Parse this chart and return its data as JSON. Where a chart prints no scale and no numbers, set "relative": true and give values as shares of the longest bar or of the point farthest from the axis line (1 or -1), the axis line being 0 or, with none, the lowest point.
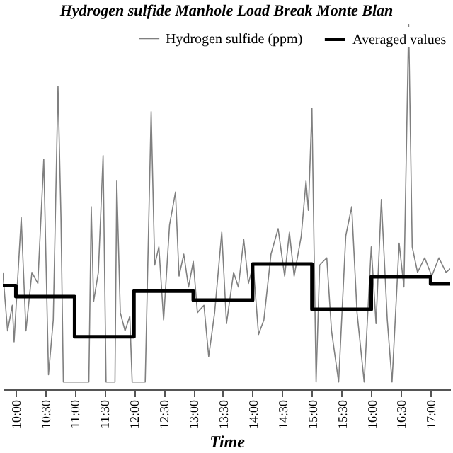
{
  "chart_data": {
    "type": "line",
    "title": "Hydrogen sulfide Manhole Load Break Monte Blan",
    "xlabel": "Time",
    "relative": true,
    "legend": "top right",
    "grid": false,
    "xlim": [
      9.79,
      17.33
    ],
    "xticks": [
      {
        "value": 10,
        "label": "10:00"
      },
      {
        "value": 10.5,
        "label": "10:30"
      },
      {
        "value": 11,
        "label": "11:00"
      },
      {
        "value": 11.5,
        "label": "11:30"
      },
      {
        "value": 12,
        "label": "12:00"
      },
      {
        "value": 12.5,
        "label": "12:30"
      },
      {
        "value": 13,
        "label": "13:00"
      },
      {
        "value": 13.5,
        "label": "13:30"
      },
      {
        "value": 14,
        "label": "14:00"
      },
      {
        "value": 14.5,
        "label": "14:30"
      },
      {
        "value": 15,
        "label": "15:00"
      },
      {
        "value": 15.5,
        "label": "15:30"
      },
      {
        "value": 16,
        "label": "16:00"
      },
      {
        "value": 16.5,
        "label": "16:30"
      },
      {
        "value": 17,
        "label": "17:00"
      }
    ],
    "series": [
      {
        "name": "Hydrogen sulfide (ppm)",
        "type": "line",
        "color": "#808080",
        "x": [
          9.79,
          9.87,
          9.95,
          9.98,
          10.1,
          10.18,
          10.28,
          10.38,
          10.48,
          10.56,
          10.64,
          10.72,
          10.77,
          10.81,
          10.97,
          11.24,
          11.28,
          11.32,
          11.4,
          11.48,
          11.53,
          11.68,
          11.71,
          11.77,
          11.85,
          11.93,
          11.97,
          12.19,
          12.29,
          12.35,
          12.42,
          12.5,
          12.6,
          12.7,
          12.76,
          12.84,
          12.92,
          13.0,
          13.07,
          13.18,
          13.26,
          13.36,
          13.48,
          13.56,
          13.68,
          13.76,
          13.85,
          13.93,
          14.01,
          14.1,
          14.19,
          14.31,
          14.43,
          14.54,
          14.62,
          14.7,
          14.82,
          14.9,
          14.94,
          15.0,
          15.07,
          15.13,
          15.25,
          15.33,
          15.45,
          15.57,
          15.67,
          15.76,
          15.88,
          16.0,
          16.08,
          16.17,
          16.27,
          16.35,
          16.47,
          16.55,
          16.63,
          16.69,
          16.78,
          16.9,
          17.02,
          17.14,
          17.26,
          17.33
        ],
        "values": [
          0.32,
          0.16,
          0.23,
          0.13,
          0.47,
          0.16,
          0.32,
          0.29,
          0.63,
          0.04,
          0.19,
          0.83,
          0.47,
          0.02,
          0.02,
          0.02,
          0.5,
          0.24,
          0.32,
          0.64,
          0.02,
          0.02,
          0.57,
          0.21,
          0.16,
          0.2,
          0.02,
          0.02,
          0.76,
          0.34,
          0.39,
          0.19,
          0.45,
          0.54,
          0.31,
          0.37,
          0.28,
          0.35,
          0.21,
          0.23,
          0.09,
          0.21,
          0.43,
          0.18,
          0.32,
          0.28,
          0.41,
          0.29,
          0.34,
          0.15,
          0.19,
          0.37,
          0.44,
          0.31,
          0.43,
          0.31,
          0.42,
          0.57,
          0.49,
          0.77,
          0.02,
          0.34,
          0.36,
          0.16,
          0.02,
          0.42,
          0.5,
          0.21,
          0.02,
          0.39,
          0.18,
          0.52,
          0.19,
          0.02,
          0.4,
          0.28,
          1.0,
          0.39,
          0.32,
          0.36,
          0.31,
          0.36,
          0.32,
          0.33
        ]
      },
      {
        "name": "Averaged values",
        "type": "step",
        "color": "#000000",
        "x": [
          9.79,
          10.01,
          11.0,
          12.0,
          13.0,
          14.0,
          15.0,
          16.0,
          17.0,
          17.33
        ],
        "values": [
          0.284,
          0.254,
          0.144,
          0.269,
          0.244,
          0.343,
          0.219,
          0.308,
          0.289,
          0.289
        ]
      }
    ]
  }
}
